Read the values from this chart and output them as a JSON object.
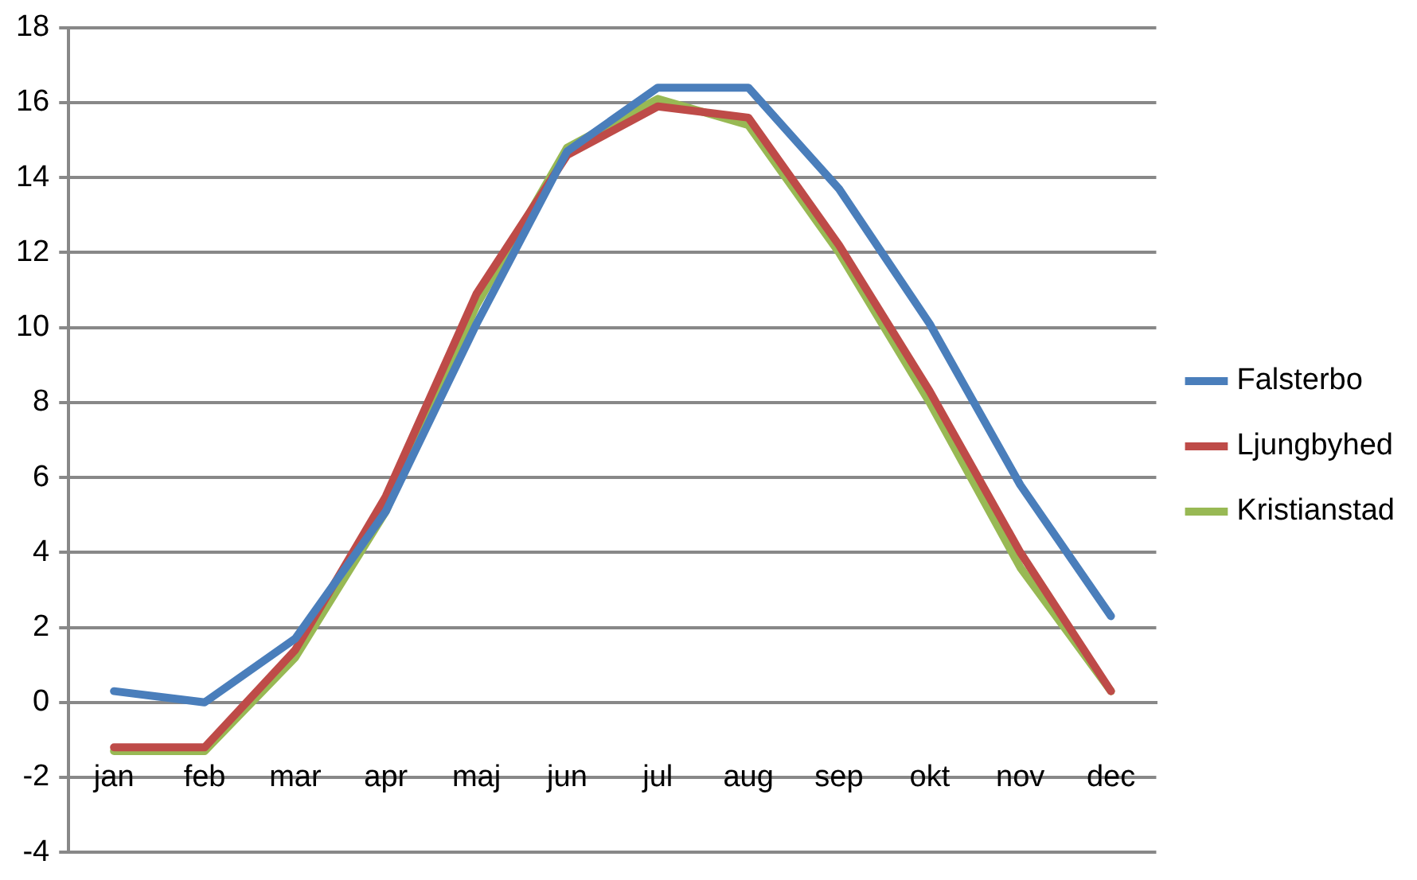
{
  "chart_data": {
    "type": "line",
    "categories": [
      "jan",
      "feb",
      "mar",
      "apr",
      "maj",
      "jun",
      "jul",
      "aug",
      "sep",
      "okt",
      "nov",
      "dec"
    ],
    "series": [
      {
        "name": "Falsterbo",
        "color": "#4a7ebb",
        "values": [
          0.3,
          0.0,
          1.7,
          5.1,
          10.1,
          14.7,
          16.4,
          16.4,
          13.7,
          10.1,
          5.8,
          2.3
        ]
      },
      {
        "name": "Ljungbyhed",
        "color": "#be4b48",
        "values": [
          -1.2,
          -1.2,
          1.4,
          5.5,
          10.9,
          14.6,
          15.9,
          15.6,
          12.2,
          8.3,
          4.0,
          0.3
        ]
      },
      {
        "name": "Kristianstad",
        "color": "#98b954",
        "values": [
          -1.3,
          -1.3,
          1.2,
          5.1,
          10.6,
          14.8,
          16.1,
          15.4,
          12.0,
          8.0,
          3.6,
          0.3
        ]
      }
    ],
    "ylim": [
      -4,
      18
    ],
    "yticks": [
      -4,
      -2,
      0,
      2,
      4,
      6,
      8,
      10,
      12,
      14,
      16,
      18
    ],
    "grid": "y",
    "legend": "right",
    "marker": "none",
    "line_style": "solid"
  }
}
